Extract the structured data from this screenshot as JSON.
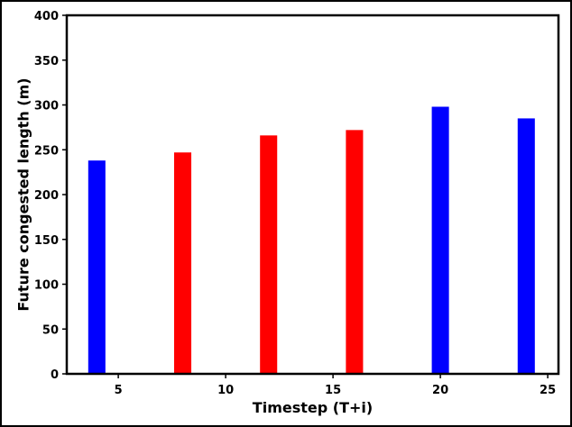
{
  "chart_data": {
    "type": "bar",
    "title": "",
    "xlabel": "Timestep (T+i)",
    "ylabel": "Future congested length (m)",
    "xlim": [
      2.6,
      25.5
    ],
    "ylim": [
      0,
      400
    ],
    "xticks": [
      5,
      10,
      15,
      20,
      25
    ],
    "yticks": [
      0,
      50,
      100,
      150,
      200,
      250,
      300,
      350,
      400
    ],
    "grid": false,
    "bar_width": 0.8,
    "bars": [
      {
        "x": 4,
        "value": 238,
        "color": "#0000ff"
      },
      {
        "x": 8,
        "value": 247,
        "color": "#ff0000"
      },
      {
        "x": 12,
        "value": 266,
        "color": "#ff0000"
      },
      {
        "x": 16,
        "value": 272,
        "color": "#ff0000"
      },
      {
        "x": 20,
        "value": 298,
        "color": "#0000ff"
      },
      {
        "x": 24,
        "value": 285,
        "color": "#0000ff"
      }
    ]
  }
}
